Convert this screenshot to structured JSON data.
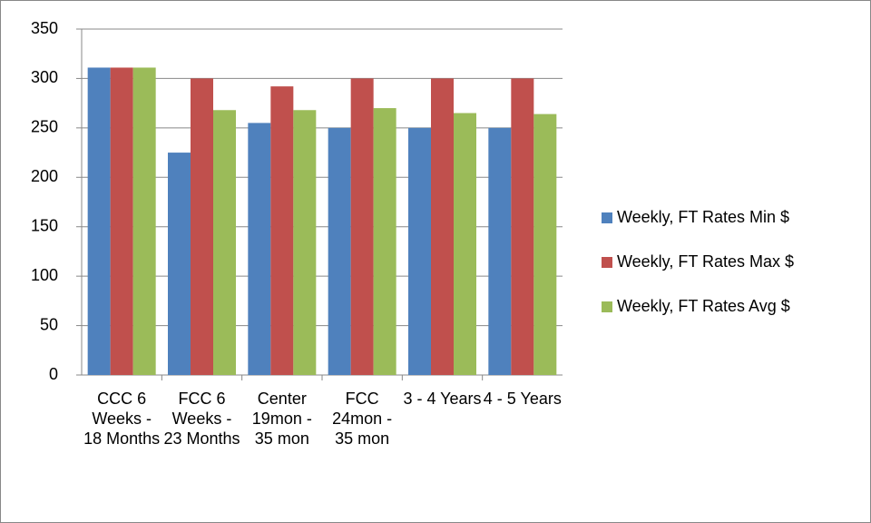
{
  "chart_data": {
    "type": "bar",
    "categories": [
      "CCC 6 Weeks - 18 Months",
      "FCC 6 Weeks - 23 Months",
      "Center 19mon - 35 mon",
      "FCC 24mon - 35 mon",
      "3 - 4 Years",
      "4 - 5 Years"
    ],
    "series": [
      {
        "name": "Weekly, FT Rates Min $",
        "color": "#4f81bd",
        "values": [
          311,
          225,
          255,
          250,
          250,
          250
        ]
      },
      {
        "name": "Weekly, FT Rates Max $",
        "color": "#c0504d",
        "values": [
          311,
          300,
          292,
          300,
          300,
          300
        ]
      },
      {
        "name": "Weekly, FT Rates Avg $",
        "color": "#9bbb59",
        "values": [
          311,
          268,
          268,
          270,
          265,
          264
        ]
      }
    ],
    "ylim": [
      0,
      350
    ],
    "yticks": [
      0,
      50,
      100,
      150,
      200,
      250,
      300,
      350
    ],
    "grid": true,
    "legend": "right"
  }
}
